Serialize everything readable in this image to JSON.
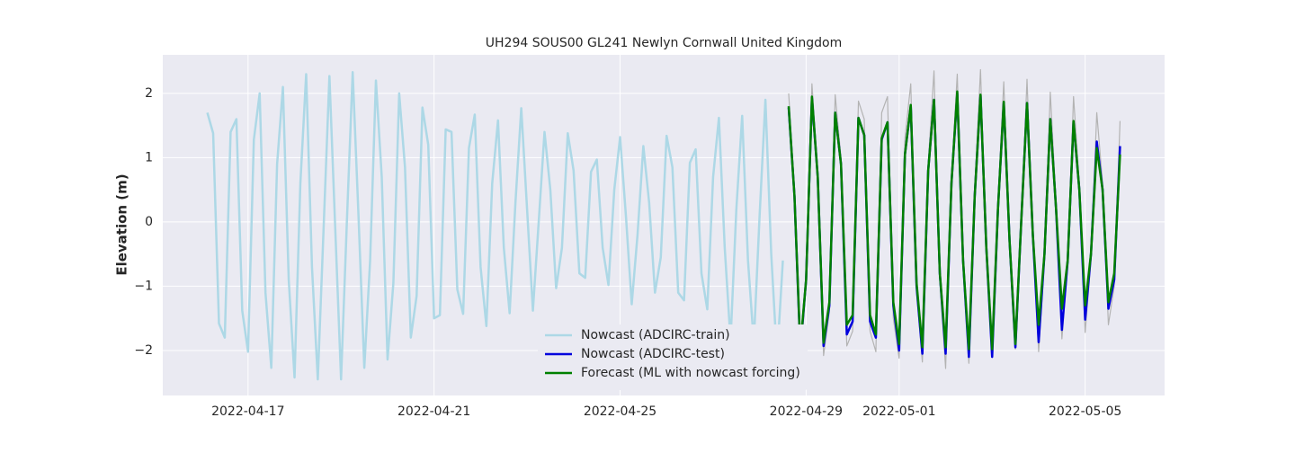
{
  "chart_data": {
    "type": "line",
    "title": "UH294 SOUS00 GL241 Newlyn Cornwall United Kingdom",
    "y_label": "Elevation (m)",
    "x": [
      "2022-04-16T03:00",
      "2022-04-16T06:00",
      "2022-04-16T09:00",
      "2022-04-16T12:00",
      "2022-04-16T15:00",
      "2022-04-16T18:00",
      "2022-04-16T21:00",
      "2022-04-17T00:00",
      "2022-04-17T03:00",
      "2022-04-17T06:00",
      "2022-04-17T09:00",
      "2022-04-17T12:00",
      "2022-04-17T15:00",
      "2022-04-17T18:00",
      "2022-04-17T21:00",
      "2022-04-18T00:00",
      "2022-04-18T03:00",
      "2022-04-18T06:00",
      "2022-04-18T09:00",
      "2022-04-18T12:00",
      "2022-04-18T15:00",
      "2022-04-18T18:00",
      "2022-04-18T21:00",
      "2022-04-19T00:00",
      "2022-04-19T03:00",
      "2022-04-19T06:00",
      "2022-04-19T09:00",
      "2022-04-19T12:00",
      "2022-04-19T15:00",
      "2022-04-19T18:00",
      "2022-04-19T21:00",
      "2022-04-20T00:00",
      "2022-04-20T03:00",
      "2022-04-20T06:00",
      "2022-04-20T09:00",
      "2022-04-20T12:00",
      "2022-04-20T15:00",
      "2022-04-20T18:00",
      "2022-04-20T21:00",
      "2022-04-21T00:00",
      "2022-04-21T03:00",
      "2022-04-21T06:00",
      "2022-04-21T09:00",
      "2022-04-21T12:00",
      "2022-04-21T15:00",
      "2022-04-21T18:00",
      "2022-04-21T21:00",
      "2022-04-22T00:00",
      "2022-04-22T03:00",
      "2022-04-22T06:00",
      "2022-04-22T09:00",
      "2022-04-22T12:00",
      "2022-04-22T15:00",
      "2022-04-22T18:00",
      "2022-04-22T21:00",
      "2022-04-23T00:00",
      "2022-04-23T03:00",
      "2022-04-23T06:00",
      "2022-04-23T09:00",
      "2022-04-23T12:00",
      "2022-04-23T15:00",
      "2022-04-23T18:00",
      "2022-04-23T21:00",
      "2022-04-24T00:00",
      "2022-04-24T03:00",
      "2022-04-24T06:00",
      "2022-04-24T09:00",
      "2022-04-24T12:00",
      "2022-04-24T15:00",
      "2022-04-24T18:00",
      "2022-04-24T21:00",
      "2022-04-25T00:00",
      "2022-04-25T03:00",
      "2022-04-25T06:00",
      "2022-04-25T09:00",
      "2022-04-25T12:00",
      "2022-04-25T15:00",
      "2022-04-25T18:00",
      "2022-04-25T21:00",
      "2022-04-26T00:00",
      "2022-04-26T03:00",
      "2022-04-26T06:00",
      "2022-04-26T09:00",
      "2022-04-26T12:00",
      "2022-04-26T15:00",
      "2022-04-26T18:00",
      "2022-04-26T21:00",
      "2022-04-27T00:00",
      "2022-04-27T03:00",
      "2022-04-27T06:00",
      "2022-04-27T09:00",
      "2022-04-27T12:00",
      "2022-04-27T15:00",
      "2022-04-27T18:00",
      "2022-04-27T21:00",
      "2022-04-28T00:00",
      "2022-04-28T03:00",
      "2022-04-28T06:00",
      "2022-04-28T09:00",
      "2022-04-28T12:00",
      "2022-04-28T15:00",
      "2022-04-28T18:00",
      "2022-04-28T21:00",
      "2022-04-29T00:00",
      "2022-04-29T03:00",
      "2022-04-29T06:00",
      "2022-04-29T09:00",
      "2022-04-29T12:00",
      "2022-04-29T15:00",
      "2022-04-29T18:00",
      "2022-04-29T21:00",
      "2022-04-30T00:00",
      "2022-04-30T03:00",
      "2022-04-30T06:00",
      "2022-04-30T09:00",
      "2022-04-30T12:00",
      "2022-04-30T15:00",
      "2022-04-30T18:00",
      "2022-04-30T21:00",
      "2022-05-01T00:00",
      "2022-05-01T03:00",
      "2022-05-01T06:00",
      "2022-05-01T09:00",
      "2022-05-01T12:00",
      "2022-05-01T15:00",
      "2022-05-01T18:00",
      "2022-05-01T21:00",
      "2022-05-02T00:00",
      "2022-05-02T03:00",
      "2022-05-02T06:00",
      "2022-05-02T09:00",
      "2022-05-02T12:00",
      "2022-05-02T15:00",
      "2022-05-02T18:00",
      "2022-05-02T21:00",
      "2022-05-03T00:00",
      "2022-05-03T03:00",
      "2022-05-03T06:00",
      "2022-05-03T09:00",
      "2022-05-03T12:00",
      "2022-05-03T15:00",
      "2022-05-03T18:00",
      "2022-05-03T21:00",
      "2022-05-04T00:00",
      "2022-05-04T03:00",
      "2022-05-04T06:00",
      "2022-05-04T09:00",
      "2022-05-04T12:00",
      "2022-05-04T15:00",
      "2022-05-04T18:00",
      "2022-05-04T21:00",
      "2022-05-05T00:00",
      "2022-05-05T03:00",
      "2022-05-05T06:00",
      "2022-05-05T09:00",
      "2022-05-05T12:00",
      "2022-05-05T15:00",
      "2022-05-05T18:00"
    ],
    "series": [
      {
        "name": "Nowcast (ADCIRC-train)",
        "color": "#add8e6",
        "width": 2.5,
        "values": [
          1.7,
          1.38,
          -1.58,
          -1.8,
          1.4,
          1.6,
          -1.38,
          -2.02,
          1.28,
          2.0,
          -1.1,
          -2.27,
          0.9,
          2.1,
          -0.9,
          -2.42,
          0.6,
          2.3,
          -0.7,
          -2.45,
          -0.1,
          2.27,
          -0.1,
          -2.45,
          0,
          2.33,
          0.1,
          -2.27,
          -0.6,
          2.2,
          0.7,
          -2.14,
          -0.95,
          2.0,
          0.85,
          -1.8,
          -1.15,
          1.78,
          1.2,
          -1.5,
          -1.45,
          1.44,
          1.4,
          -1.05,
          -1.43,
          1.15,
          1.67,
          -0.7,
          -1.62,
          0.6,
          1.58,
          -0.4,
          -1.42,
          0.3,
          1.77,
          0.2,
          -1.38,
          0,
          1.4,
          0.5,
          -1.03,
          -0.4,
          1.38,
          0.8,
          -0.8,
          -0.87,
          0.78,
          0.97,
          -0.4,
          -0.98,
          0.5,
          1.32,
          0.1,
          -1.28,
          -0.2,
          1.18,
          0.3,
          -1.1,
          -0.55,
          1.34,
          0.85,
          -1.1,
          -1.22,
          0.92,
          1.13,
          -0.8,
          -1.36,
          0.7,
          1.62,
          -0.4,
          -1.85,
          0.2,
          1.65,
          -0.6,
          -1.88,
          0.1,
          1.9,
          -0.5,
          -2.12,
          -0.6,
          null,
          null,
          null,
          null,
          null,
          null,
          null,
          null,
          null,
          null,
          null,
          null,
          null,
          null,
          null,
          null,
          null,
          null,
          null,
          null,
          null,
          null,
          null,
          null,
          null,
          null,
          null,
          null,
          null,
          null,
          null,
          null,
          null,
          null,
          null,
          null,
          null,
          null,
          null,
          null,
          null,
          null,
          null,
          null,
          null,
          null,
          null,
          null,
          null,
          null,
          null,
          null,
          null,
          null,
          null,
          null,
          null,
          null
        ]
      },
      {
        "color": "#b3b3b3",
        "width": 1.2,
        "values": [
          null,
          null,
          null,
          null,
          null,
          null,
          null,
          null,
          null,
          null,
          null,
          null,
          null,
          null,
          null,
          null,
          null,
          null,
          null,
          null,
          null,
          null,
          null,
          null,
          null,
          null,
          null,
          null,
          null,
          null,
          null,
          null,
          null,
          null,
          null,
          null,
          null,
          null,
          null,
          null,
          null,
          null,
          null,
          null,
          null,
          null,
          null,
          null,
          null,
          null,
          null,
          null,
          null,
          null,
          null,
          null,
          null,
          null,
          null,
          null,
          null,
          null,
          null,
          null,
          null,
          null,
          null,
          null,
          null,
          null,
          null,
          null,
          null,
          null,
          null,
          null,
          null,
          null,
          null,
          null,
          null,
          null,
          null,
          null,
          null,
          null,
          null,
          null,
          null,
          null,
          null,
          null,
          null,
          null,
          null,
          null,
          null,
          null,
          null,
          null,
          2.0,
          0.5,
          -2.18,
          -1.0,
          2.15,
          0.8,
          -2.08,
          -1.4,
          1.98,
          1.0,
          -1.93,
          -1.7,
          1.88,
          1.6,
          -1.7,
          -2.02,
          1.7,
          1.95,
          -1.5,
          -2.12,
          1.3,
          2.15,
          -1.1,
          -2.18,
          0.9,
          2.35,
          -0.9,
          -2.28,
          0.7,
          2.3,
          -0.7,
          -2.2,
          0.5,
          2.37,
          -0.5,
          -2.1,
          0.3,
          2.18,
          -0.3,
          -1.98,
          0,
          2.22,
          -0.2,
          -2.02,
          -0.6,
          2.02,
          0.3,
          -1.82,
          -0.7,
          1.95,
          0.6,
          -1.72,
          -0.6,
          1.7,
          0.6,
          -1.6,
          -1.0,
          1.57
        ]
      },
      {
        "name": "Nowcast (ADCIRC-test)",
        "color": "#0000dd",
        "width": 2.5,
        "values": [
          null,
          null,
          null,
          null,
          null,
          null,
          null,
          null,
          null,
          null,
          null,
          null,
          null,
          null,
          null,
          null,
          null,
          null,
          null,
          null,
          null,
          null,
          null,
          null,
          null,
          null,
          null,
          null,
          null,
          null,
          null,
          null,
          null,
          null,
          null,
          null,
          null,
          null,
          null,
          null,
          null,
          null,
          null,
          null,
          null,
          null,
          null,
          null,
          null,
          null,
          null,
          null,
          null,
          null,
          null,
          null,
          null,
          null,
          null,
          null,
          null,
          null,
          null,
          null,
          null,
          null,
          null,
          null,
          null,
          null,
          null,
          null,
          null,
          null,
          null,
          null,
          null,
          null,
          null,
          null,
          null,
          null,
          null,
          null,
          null,
          null,
          null,
          null,
          null,
          null,
          null,
          null,
          null,
          null,
          null,
          null,
          null,
          null,
          null,
          null,
          1.78,
          0.4,
          -2.0,
          -0.9,
          1.93,
          0.7,
          -1.93,
          -1.3,
          1.7,
          0.9,
          -1.75,
          -1.55,
          1.62,
          1.35,
          -1.55,
          -1.8,
          1.28,
          1.55,
          -1.3,
          -2.0,
          1.05,
          1.8,
          -1.0,
          -2.05,
          0.8,
          1.9,
          -0.8,
          -2.05,
          0.6,
          2.0,
          -0.6,
          -2.1,
          0.4,
          1.97,
          -0.4,
          -2.1,
          0.2,
          1.85,
          -0.3,
          -1.95,
          0,
          1.85,
          -0.2,
          -1.87,
          -0.5,
          1.6,
          0.2,
          -1.68,
          -0.6,
          1.55,
          0.5,
          -1.52,
          -0.5,
          1.25,
          0.5,
          -1.35,
          -0.9,
          1.18
        ]
      },
      {
        "name": "Forecast (ML with nowcast forcing)",
        "color": "#008000",
        "width": 2.5,
        "values": [
          null,
          null,
          null,
          null,
          null,
          null,
          null,
          null,
          null,
          null,
          null,
          null,
          null,
          null,
          null,
          null,
          null,
          null,
          null,
          null,
          null,
          null,
          null,
          null,
          null,
          null,
          null,
          null,
          null,
          null,
          null,
          null,
          null,
          null,
          null,
          null,
          null,
          null,
          null,
          null,
          null,
          null,
          null,
          null,
          null,
          null,
          null,
          null,
          null,
          null,
          null,
          null,
          null,
          null,
          null,
          null,
          null,
          null,
          null,
          null,
          null,
          null,
          null,
          null,
          null,
          null,
          null,
          null,
          null,
          null,
          null,
          null,
          null,
          null,
          null,
          null,
          null,
          null,
          null,
          null,
          null,
          null,
          null,
          null,
          null,
          null,
          null,
          null,
          null,
          null,
          null,
          null,
          null,
          null,
          null,
          null,
          null,
          null,
          null,
          null,
          1.8,
          0.4,
          -1.95,
          -0.9,
          1.95,
          0.7,
          -1.88,
          -1.25,
          1.7,
          0.9,
          -1.6,
          -1.45,
          1.62,
          1.35,
          -1.45,
          -1.75,
          1.3,
          1.55,
          -1.25,
          -1.9,
          1.05,
          1.82,
          -0.95,
          -1.95,
          0.8,
          1.9,
          -0.8,
          -1.95,
          0.6,
          2.03,
          -0.6,
          -1.98,
          0.4,
          1.98,
          -0.4,
          -1.98,
          0.2,
          1.87,
          -0.3,
          -1.9,
          0,
          1.85,
          -0.2,
          -1.6,
          -0.5,
          1.6,
          0.2,
          -1.35,
          -0.6,
          1.57,
          0.5,
          -1.3,
          -0.5,
          1.15,
          0.5,
          -1.25,
          -0.8,
          1.05
        ]
      }
    ],
    "xlim": [
      "2022-04-15T04:00",
      "2022-05-06T17:00"
    ],
    "xticks": [
      "2022-04-17",
      "2022-04-21",
      "2022-04-25",
      "2022-04-29",
      "2022-05-01",
      "2022-05-05"
    ],
    "ylim": [
      -2.7,
      2.6
    ],
    "yticks": [
      {
        "value": -2,
        "label": "−2"
      },
      {
        "value": -1,
        "label": "−1"
      },
      0,
      1,
      2
    ],
    "grid": true,
    "legend": "lower center"
  }
}
